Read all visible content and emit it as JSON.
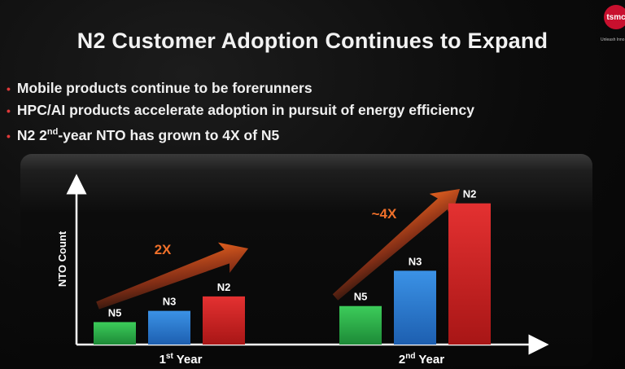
{
  "title": "N2 Customer Adoption Continues to Expand",
  "logo": {
    "mark": "tsmc",
    "tagline": "Unleash Inno"
  },
  "bullets": [
    "Mobile products continue to be forerunners",
    "HPC/AI products accelerate adoption in pursuit of energy efficiency",
    {
      "pre": "N2 2",
      "sup": "nd",
      "post": "-year NTO has grown to 4X of N5"
    }
  ],
  "colors": {
    "N5": "#2fb04a",
    "N3": "#2f7fd0",
    "N2": "#d42323",
    "arrow": "#e8501f",
    "accent": "#e03a3a"
  },
  "chart_data": {
    "type": "bar",
    "ylabel": "NTO Count",
    "ylim": [
      0,
      100
    ],
    "groups": [
      {
        "label_main": "1",
        "label_sup": "st",
        "label_rest": " Year",
        "annotation": "2X",
        "bars": [
          {
            "name": "N5",
            "value": 14
          },
          {
            "name": "N3",
            "value": 21
          },
          {
            "name": "N2",
            "value": 30
          }
        ]
      },
      {
        "label_main": "2",
        "label_sup": "nd",
        "label_rest": " Year",
        "annotation": "~4X",
        "bars": [
          {
            "name": "N5",
            "value": 24
          },
          {
            "name": "N3",
            "value": 46
          },
          {
            "name": "N2",
            "value": 88
          }
        ]
      }
    ]
  }
}
